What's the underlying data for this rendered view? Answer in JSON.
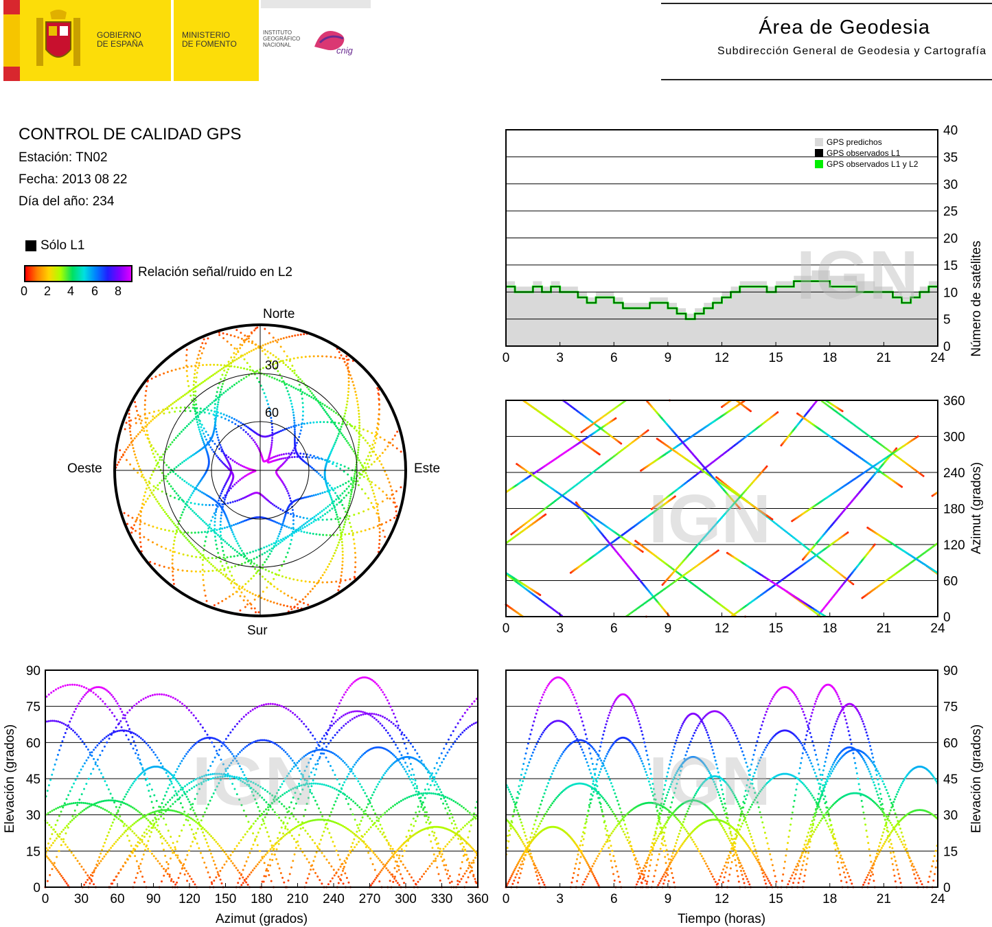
{
  "header": {
    "gov_line1": "GOBIERNO",
    "gov_line2": "DE ESPAÑA",
    "ministry_line1": "MINISTERIO",
    "ministry_line2": "DE FOMENTO",
    "ign_line1": "INSTITUTO",
    "ign_line2": "GEOGRÁFICO",
    "ign_line3": "NACIONAL",
    "cnig": "cnig",
    "title": "Área de Geodesia",
    "subtitle": "Subdirección General de Geodesia y Cartografía"
  },
  "info": {
    "title": "CONTROL DE CALIDAD GPS",
    "station": "Estación: TN02",
    "date": "Fecha: 2013 08 22",
    "doy": "Día del año: 234"
  },
  "legend": {
    "l1_only": "Sólo L1",
    "snr_label": "Relación señal/ruido en L2",
    "snr_ticks": [
      "0",
      "2",
      "4",
      "6",
      "8"
    ]
  },
  "watermark": "IGN",
  "colors": {
    "predicted": "#d9d9d9",
    "observed_l1": "#000000",
    "observed_l1_l2": "#00ee00"
  },
  "chart_data": [
    {
      "id": "skyplot",
      "type": "scatter",
      "directions": {
        "north": "Norte",
        "south": "Sur",
        "east": "Este",
        "west": "Oeste"
      },
      "elevation_rings": [
        "30",
        "60"
      ],
      "series_note_colors_by_snr": true
    },
    {
      "id": "satellites",
      "type": "area",
      "ylabel": "Número de satélites",
      "x_ticks": [
        "0",
        "3",
        "6",
        "9",
        "12",
        "15",
        "18",
        "21",
        "24"
      ],
      "y_ticks": [
        "0",
        "5",
        "10",
        "15",
        "20",
        "25",
        "30",
        "35",
        "40"
      ],
      "xlim": [
        0,
        24
      ],
      "ylim": [
        0,
        40
      ],
      "legend": [
        "GPS predichos",
        "GPS observados L1",
        "GPS observados L1 y L2"
      ],
      "legend_position": "top-right",
      "x": [
        0,
        0.5,
        1,
        1.5,
        2,
        2.5,
        3,
        3.5,
        4,
        4.5,
        5,
        5.5,
        6,
        6.5,
        7,
        7.5,
        8,
        8.5,
        9,
        9.5,
        10,
        10.5,
        11,
        11.5,
        12,
        12.5,
        13,
        13.5,
        14,
        14.5,
        15,
        15.5,
        16,
        16.5,
        17,
        17.5,
        18,
        18.5,
        19,
        19.5,
        20,
        20.5,
        21,
        21.5,
        22,
        22.5,
        23,
        23.5,
        24
      ],
      "series": [
        {
          "name": "GPS predichos",
          "values": [
            12,
            11,
            11,
            12,
            11,
            12,
            11,
            11,
            10,
            9,
            10,
            10,
            9,
            8,
            8,
            8,
            9,
            9,
            8,
            7,
            6,
            7,
            8,
            9,
            10,
            11,
            12,
            12,
            12,
            11,
            12,
            12,
            13,
            13,
            14,
            14,
            13,
            13,
            13,
            12,
            12,
            11,
            11,
            10,
            9,
            10,
            11,
            12,
            13
          ]
        },
        {
          "name": "GPS observados L1 y L2",
          "values": [
            11,
            10,
            10,
            11,
            10,
            11,
            10,
            10,
            9,
            8,
            9,
            9,
            8,
            7,
            7,
            7,
            8,
            8,
            7,
            6,
            5,
            6,
            7,
            8,
            9,
            10,
            11,
            11,
            11,
            10,
            11,
            11,
            12,
            12,
            12,
            12,
            11,
            11,
            11,
            10,
            10,
            10,
            10,
            9,
            8,
            9,
            10,
            11,
            11
          ]
        }
      ]
    },
    {
      "id": "azimuth",
      "type": "scatter",
      "ylabel": "Azimut (grados)",
      "x_ticks": [
        "0",
        "3",
        "6",
        "9",
        "12",
        "15",
        "18",
        "21",
        "24"
      ],
      "y_ticks": [
        "0",
        "60",
        "120",
        "180",
        "240",
        "300",
        "360"
      ],
      "xlim": [
        0,
        24
      ],
      "ylim": [
        0,
        360
      ]
    },
    {
      "id": "elev_vs_az",
      "type": "scatter",
      "xlabel": "Azimut (grados)",
      "ylabel": "Elevación (grados)",
      "x_ticks": [
        "0",
        "30",
        "60",
        "90",
        "120",
        "150",
        "180",
        "210",
        "240",
        "270",
        "300",
        "330",
        "360"
      ],
      "y_ticks": [
        "0",
        "15",
        "30",
        "45",
        "60",
        "75",
        "90"
      ],
      "xlim": [
        0,
        360
      ],
      "ylim": [
        0,
        90
      ]
    },
    {
      "id": "elev_vs_time",
      "type": "scatter",
      "xlabel": "Tiempo (horas)",
      "ylabel": "Elevación (grados)",
      "x_ticks": [
        "0",
        "3",
        "6",
        "9",
        "12",
        "15",
        "18",
        "21",
        "24"
      ],
      "y_ticks": [
        "0",
        "15",
        "30",
        "45",
        "60",
        "75",
        "90"
      ],
      "xlim": [
        0,
        24
      ],
      "ylim": [
        0,
        90
      ]
    }
  ]
}
